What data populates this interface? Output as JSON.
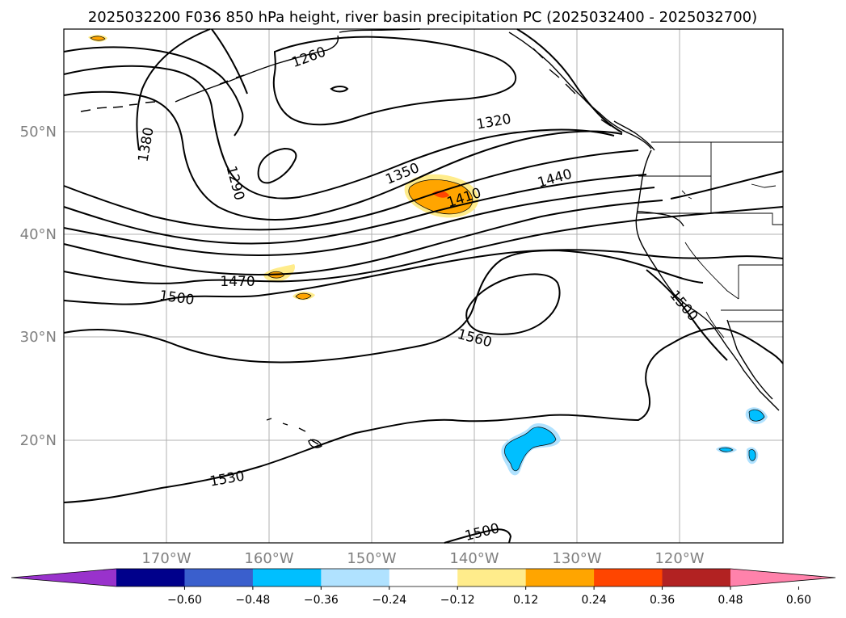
{
  "title": "2025032200 F036 850 hPa height, river basin precipitation PC (2025032400 - 2025032700)",
  "map": {
    "lon_labels": [
      "170°W",
      "160°W",
      "150°W",
      "140°W",
      "130°W",
      "120°W"
    ],
    "lat_labels": [
      "50°N",
      "40°N",
      "30°N",
      "20°N"
    ]
  },
  "contour_labels": [
    "1260",
    "1290",
    "1320",
    "1350",
    "1380",
    "1410",
    "1440",
    "1470",
    "1500",
    "1500",
    "1500",
    "1530",
    "1560"
  ],
  "colorbar": {
    "ticks": [
      "−0.60",
      "−0.48",
      "−0.36",
      "−0.24",
      "−0.12",
      "0.12",
      "0.24",
      "0.36",
      "0.48",
      "0.60"
    ],
    "colors": [
      "#9932cc",
      "#00008b",
      "#3a5fcd",
      "#00bfff",
      "#b0e2ff",
      "#ffffff",
      "#ffec8b",
      "#ffa500",
      "#ff4500",
      "#b22222",
      "#ff82ab"
    ]
  }
}
